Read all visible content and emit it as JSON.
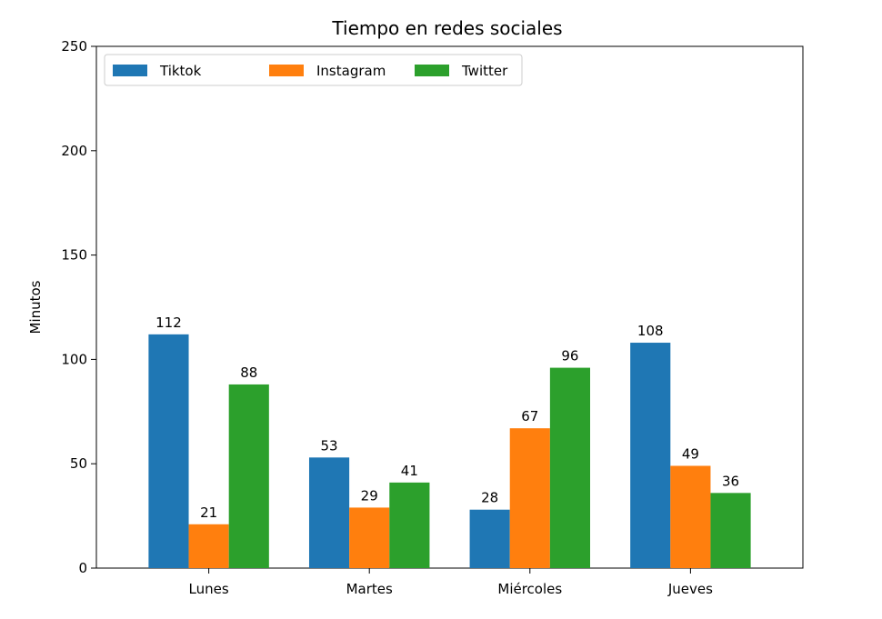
{
  "chart_data": {
    "type": "bar",
    "title": "Tiempo en redes sociales",
    "xlabel": "",
    "ylabel": "Minutos",
    "ylim": [
      0,
      250
    ],
    "yticks": [
      0,
      50,
      100,
      150,
      200,
      250
    ],
    "categories": [
      "Lunes",
      "Martes",
      "Miércoles",
      "Jueves"
    ],
    "series": [
      {
        "name": "Tiktok",
        "color": "#1f77b4",
        "values": [
          112,
          53,
          28,
          108
        ]
      },
      {
        "name": "Instagram",
        "color": "#ff7f0e",
        "values": [
          21,
          29,
          67,
          49
        ]
      },
      {
        "name": "Twitter",
        "color": "#2ca02c",
        "values": [
          88,
          41,
          96,
          36
        ]
      }
    ],
    "grid": false,
    "legend": {
      "placement": "top-left",
      "columns": 3
    },
    "data_labels": true
  }
}
